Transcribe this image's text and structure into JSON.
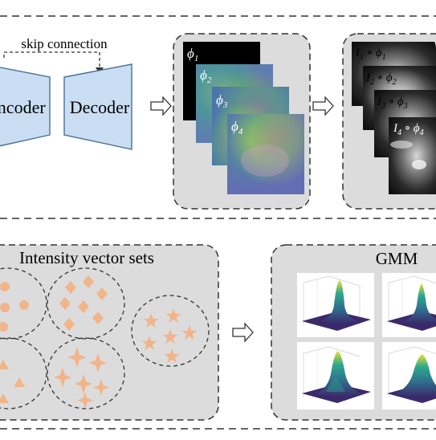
{
  "top": {
    "skip_label": "skip connection",
    "encoder_label": "Encoder",
    "decoder_label": "Decoder",
    "phi_labels": [
      "ϕ",
      "ϕ",
      "ϕ",
      "ϕ"
    ],
    "phi_subs": [
      "1",
      "2",
      "3",
      "4"
    ],
    "warp_labels": [
      "I",
      "I",
      "I",
      "I"
    ],
    "warp_subs": [
      "1",
      "2",
      "3",
      "4"
    ],
    "warp_op": "∘"
  },
  "bottom": {
    "intensity_title": "Intensity vector sets",
    "gmm_title": "GMM"
  },
  "colors": {
    "panel_fill": "#dcdcdc",
    "net_fill": "#c9def2",
    "net_stroke": "#4a6f97",
    "shape_fill": "#f2b48a",
    "dash": "#333333"
  }
}
